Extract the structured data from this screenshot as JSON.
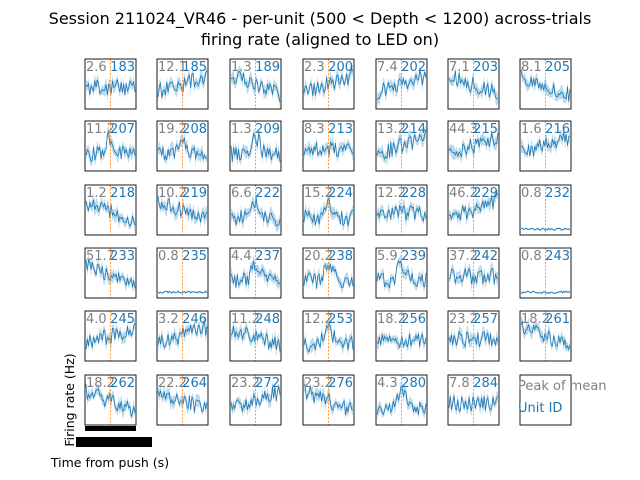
{
  "chart_data": {
    "type": "line",
    "title": "Session 211024_VR46 - per-unit (500 < Depth < 1200) across-trials\nfiring rate (aligned to LED on)",
    "xlabel": "Time from push (s)",
    "ylabel": "Firing rate (Hz)",
    "legend": {
      "peak_label": "Peak of mean",
      "unit_label": "Unit ID"
    },
    "colors": {
      "trace": "#1f77b4",
      "band": "#9ecae1",
      "marker": "#ff7f0e",
      "peak": "#808080",
      "unit": "#1f77b4"
    },
    "grid": false,
    "units": [
      {
        "id": "183",
        "peak": "2.6"
      },
      {
        "id": "185",
        "peak": "12.1"
      },
      {
        "id": "189",
        "peak": "1.3"
      },
      {
        "id": "200",
        "peak": "2.3"
      },
      {
        "id": "202",
        "peak": "7.4"
      },
      {
        "id": "203",
        "peak": "7.1"
      },
      {
        "id": "205",
        "peak": "8.1"
      },
      {
        "id": "207",
        "peak": "11.2"
      },
      {
        "id": "208",
        "peak": "19.2"
      },
      {
        "id": "209",
        "peak": "1.3"
      },
      {
        "id": "213",
        "peak": "8.3"
      },
      {
        "id": "214",
        "peak": "13.2"
      },
      {
        "id": "215",
        "peak": "44.3"
      },
      {
        "id": "216",
        "peak": "1.6"
      },
      {
        "id": "218",
        "peak": "1.2"
      },
      {
        "id": "219",
        "peak": "10.2"
      },
      {
        "id": "222",
        "peak": "6.6"
      },
      {
        "id": "224",
        "peak": "15.2"
      },
      {
        "id": "228",
        "peak": "12.2"
      },
      {
        "id": "229",
        "peak": "46.2"
      },
      {
        "id": "232",
        "peak": "0.8"
      },
      {
        "id": "233",
        "peak": "51.7"
      },
      {
        "id": "235",
        "peak": "0.8"
      },
      {
        "id": "237",
        "peak": "4.4"
      },
      {
        "id": "238",
        "peak": "20.2"
      },
      {
        "id": "239",
        "peak": "5.9"
      },
      {
        "id": "242",
        "peak": "37.2"
      },
      {
        "id": "243",
        "peak": "0.8"
      },
      {
        "id": "245",
        "peak": "4.0"
      },
      {
        "id": "246",
        "peak": "3.2"
      },
      {
        "id": "248",
        "peak": "11.2"
      },
      {
        "id": "253",
        "peak": "12.2"
      },
      {
        "id": "256",
        "peak": "18.2"
      },
      {
        "id": "257",
        "peak": "23.2"
      },
      {
        "id": "261",
        "peak": "18.2"
      },
      {
        "id": "262",
        "peak": "18.2"
      },
      {
        "id": "264",
        "peak": "22.2"
      },
      {
        "id": "272",
        "peak": "23.2"
      },
      {
        "id": "276",
        "peak": "23.2"
      },
      {
        "id": "280",
        "peak": "4.3"
      },
      {
        "id": "284",
        "peak": "7.8"
      }
    ]
  }
}
